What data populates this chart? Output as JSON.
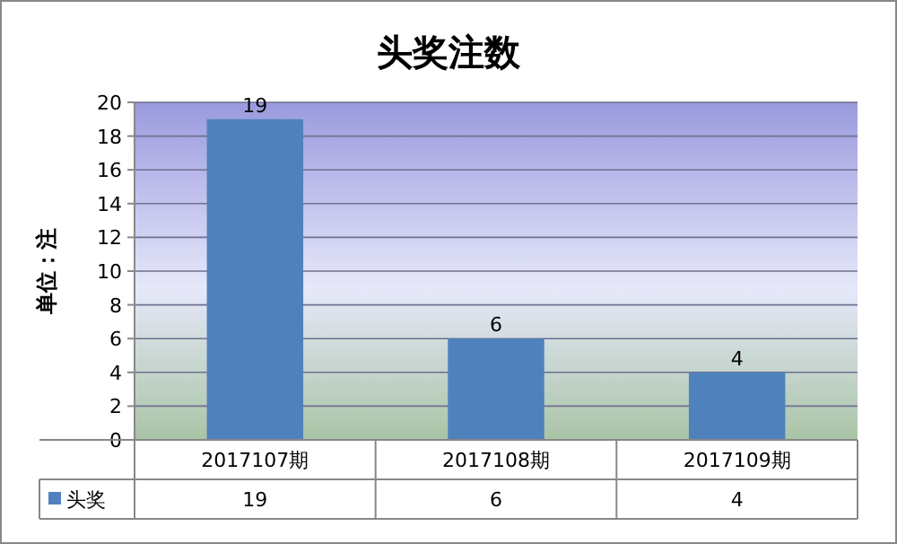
{
  "chart_data": {
    "type": "bar",
    "title": "头奖注数",
    "ylabel": "单位：注",
    "categories": [
      "2017107期",
      "2017108期",
      "2017109期"
    ],
    "series": [
      {
        "name": "头奖",
        "color": "#4f81bd",
        "values": [
          19,
          6,
          4
        ],
        "value_labels": [
          "19",
          "6",
          "4"
        ]
      }
    ],
    "ylim": [
      0,
      20
    ],
    "yticks": [
      0,
      2,
      4,
      6,
      8,
      10,
      12,
      14,
      16,
      18,
      20
    ],
    "grid": "y",
    "annotations": [
      "19",
      "6",
      "4"
    ],
    "legend": "bottom left"
  }
}
